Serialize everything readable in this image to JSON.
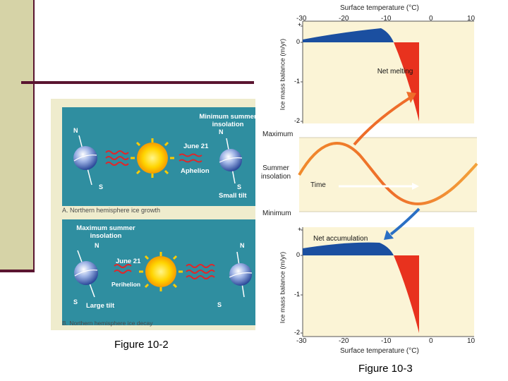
{
  "figure_2": {
    "label": "Figure 10-2",
    "panel_a": {
      "caption": "A. Northern hemisphere ice growth",
      "title": "Minimum summer insolation",
      "date": "June 21",
      "orbit_point": "Aphelion",
      "tilt": "Small tilt",
      "north": "N",
      "south": "S"
    },
    "panel_b": {
      "caption": "B. Northern hemisphere ice decay",
      "title": "Maximum summer insolation",
      "date": "June 21",
      "orbit_point": "Perihelion",
      "tilt": "Large tilt",
      "north": "N",
      "south": "S"
    }
  },
  "figure_3": {
    "label": "Figure 10-3",
    "top_axis_label": "Surface temperature (°C)",
    "bottom_axis_label": "Surface temperature (°C)",
    "x_ticks": [
      "-30",
      "-20",
      "-10",
      "0",
      "10"
    ],
    "y_ticks_top": [
      "+",
      "0",
      "-1",
      "-2"
    ],
    "y_ticks_bottom": [
      "+",
      "0",
      "-1",
      "-2"
    ],
    "y_axis_label": "Ice mass balance (m/yr)",
    "net_melting_label": "Net melting",
    "net_accumulation_label": "Net accumulation",
    "maximum_label": "Maximum",
    "minimum_label": "Minimum",
    "summer_insolation_label": "Summer insolation",
    "time_label": "Time",
    "colors": {
      "accumulation": "#1b4fa0",
      "melting": "#e8321e",
      "chart_bg": "#fbf4d6",
      "curve": "#ef7d2a"
    }
  }
}
